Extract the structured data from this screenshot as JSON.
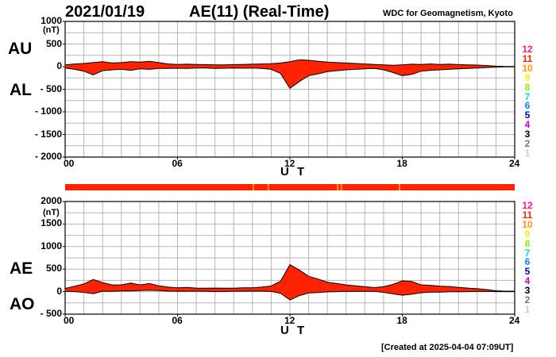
{
  "header": {
    "date": "2021/01/19",
    "title": "AE(11) (Real-Time)",
    "source": "WDC for Geomagnetism, Kyoto"
  },
  "footer": {
    "created": "[Created at 2025-04-04 07:09UT]"
  },
  "scale_legend": [
    {
      "label": "12",
      "color": "#ff1493"
    },
    {
      "label": "11",
      "color": "#ff2200"
    },
    {
      "label": "10",
      "color": "#ff9900"
    },
    {
      "label": "9",
      "color": "#ffee00"
    },
    {
      "label": "8",
      "color": "#99ee00"
    },
    {
      "label": "7",
      "color": "#00dddd"
    },
    {
      "label": "6",
      "color": "#0088ff"
    },
    {
      "label": "5",
      "color": "#0000cc"
    },
    {
      "label": "4",
      "color": "#cc00cc"
    },
    {
      "label": "3",
      "color": "#000000"
    },
    {
      "label": "2",
      "color": "#777777"
    },
    {
      "label": "1",
      "color": "#cccccc"
    }
  ],
  "chart_data": [
    {
      "type": "area",
      "id": "au_al",
      "side_labels": [
        "AU",
        "AL"
      ],
      "unit": "(nT)",
      "xlabel": "U T",
      "xlim": [
        0,
        24
      ],
      "xticks": [
        "00",
        "06",
        "12",
        "18",
        "24"
      ],
      "ylim": [
        -2000,
        1000
      ],
      "yticks": [
        "1000",
        "500",
        "0",
        "- 500",
        "- 1000",
        "- 1500",
        "- 2000"
      ],
      "grid": true,
      "series": [
        {
          "name": "AU",
          "x": [
            0,
            0.5,
            1,
            1.5,
            2,
            2.5,
            3,
            3.5,
            4,
            4.5,
            5,
            5.5,
            6,
            6.5,
            7,
            7.5,
            8,
            8.5,
            9,
            9.5,
            10,
            10.5,
            11,
            11.5,
            12,
            12.5,
            13,
            13.5,
            14,
            14.5,
            15,
            15.5,
            16,
            16.5,
            17,
            17.5,
            18,
            18.5,
            19,
            19.5,
            20,
            20.5,
            21,
            21.5,
            22,
            22.5,
            23,
            23.5,
            24
          ],
          "values": [
            40,
            60,
            70,
            90,
            110,
            80,
            90,
            110,
            100,
            120,
            90,
            60,
            50,
            55,
            50,
            45,
            40,
            40,
            45,
            50,
            55,
            60,
            65,
            80,
            110,
            150,
            140,
            120,
            100,
            90,
            80,
            70,
            60,
            50,
            40,
            30,
            40,
            55,
            50,
            60,
            50,
            55,
            45,
            40,
            35,
            25,
            10,
            5,
            5
          ]
        },
        {
          "name": "AL",
          "x": [
            0,
            0.5,
            1,
            1.5,
            2,
            2.5,
            3,
            3.5,
            4,
            4.5,
            5,
            5.5,
            6,
            6.5,
            7,
            7.5,
            8,
            8.5,
            9,
            9.5,
            10,
            10.5,
            11,
            11.5,
            12,
            12.5,
            13,
            13.5,
            14,
            14.5,
            15,
            15.5,
            16,
            16.5,
            17,
            17.5,
            18,
            18.5,
            19,
            19.5,
            20,
            20.5,
            21,
            21.5,
            22,
            22.5,
            23,
            23.5,
            24
          ],
          "values": [
            -30,
            -60,
            -100,
            -180,
            -90,
            -70,
            -60,
            -80,
            -50,
            -60,
            -40,
            -40,
            -35,
            -40,
            -30,
            -30,
            -40,
            -35,
            -30,
            -35,
            -30,
            -40,
            -60,
            -150,
            -480,
            -330,
            -200,
            -160,
            -110,
            -90,
            -70,
            -60,
            -50,
            -40,
            -70,
            -130,
            -200,
            -170,
            -100,
            -80,
            -70,
            -60,
            -50,
            -40,
            -30,
            -20,
            -10,
            -5,
            -5
          ]
        }
      ]
    },
    {
      "type": "area",
      "id": "ae_ao",
      "side_labels": [
        "AE",
        "AO"
      ],
      "unit": "(nT)",
      "xlabel": "U T",
      "xlim": [
        0,
        24
      ],
      "xticks": [
        "00",
        "06",
        "12",
        "18",
        "24"
      ],
      "ylim": [
        -500,
        2000
      ],
      "yticks": [
        "2000",
        "1500",
        "1000",
        "500",
        "0",
        "- 500"
      ],
      "grid": true,
      "series": [
        {
          "name": "AE",
          "x": [
            0,
            0.5,
            1,
            1.5,
            2,
            2.5,
            3,
            3.5,
            4,
            4.5,
            5,
            5.5,
            6,
            6.5,
            7,
            7.5,
            8,
            8.5,
            9,
            9.5,
            10,
            10.5,
            11,
            11.5,
            12,
            12.5,
            13,
            13.5,
            14,
            14.5,
            15,
            15.5,
            16,
            16.5,
            17,
            17.5,
            18,
            18.5,
            19,
            19.5,
            20,
            20.5,
            21,
            21.5,
            22,
            22.5,
            23,
            23.5,
            24
          ],
          "values": [
            70,
            120,
            170,
            270,
            200,
            150,
            150,
            190,
            150,
            180,
            130,
            100,
            85,
            95,
            80,
            75,
            80,
            75,
            75,
            85,
            85,
            100,
            125,
            230,
            600,
            480,
            340,
            280,
            210,
            180,
            150,
            130,
            110,
            90,
            110,
            160,
            240,
            225,
            150,
            140,
            120,
            115,
            95,
            80,
            65,
            45,
            20,
            10,
            10
          ]
        },
        {
          "name": "AO",
          "x": [
            0,
            0.5,
            1,
            1.5,
            2,
            2.5,
            3,
            3.5,
            4,
            4.5,
            5,
            5.5,
            6,
            6.5,
            7,
            7.5,
            8,
            8.5,
            9,
            9.5,
            10,
            10.5,
            11,
            11.5,
            12,
            12.5,
            13,
            13.5,
            14,
            14.5,
            15,
            15.5,
            16,
            16.5,
            17,
            17.5,
            18,
            18.5,
            19,
            19.5,
            20,
            20.5,
            21,
            21.5,
            22,
            22.5,
            23,
            23.5,
            24
          ],
          "values": [
            5,
            0,
            -15,
            -45,
            10,
            5,
            15,
            15,
            25,
            30,
            25,
            10,
            8,
            8,
            10,
            8,
            0,
            3,
            8,
            8,
            13,
            10,
            3,
            -35,
            -185,
            -90,
            -30,
            -20,
            -5,
            0,
            5,
            5,
            5,
            5,
            -15,
            -50,
            -80,
            -58,
            -25,
            -10,
            -10,
            -3,
            -3,
            0,
            3,
            3,
            0,
            0,
            0
          ]
        }
      ]
    }
  ],
  "quality_strip": {
    "base_color": "#ff2200",
    "marks": [
      {
        "hour": 10.05,
        "color": "#ff9900"
      },
      {
        "hour": 10.85,
        "color": "#ff9900"
      },
      {
        "hour": 14.55,
        "color": "#ff9900"
      },
      {
        "hour": 14.75,
        "color": "#ff9900"
      },
      {
        "hour": 17.85,
        "color": "#ff9900"
      }
    ]
  }
}
